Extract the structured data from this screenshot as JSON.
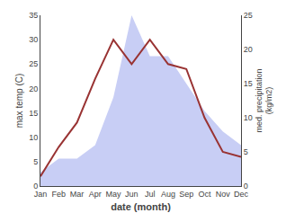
{
  "chart_data": {
    "type": "line",
    "categories": [
      "Jan",
      "Feb",
      "Mar",
      "Apr",
      "May",
      "Jun",
      "Jul",
      "Aug",
      "Sep",
      "Oct",
      "Nov",
      "Dec"
    ],
    "series": [
      {
        "type": "area",
        "axis": "y2",
        "color": "#c8cef5",
        "values": [
          2,
          4,
          4,
          6,
          13,
          25,
          19,
          19,
          15,
          11,
          8,
          6
        ]
      },
      {
        "type": "line",
        "color": "#993333",
        "values": [
          2,
          8,
          13,
          22,
          30,
          25,
          30,
          25,
          24,
          14,
          7,
          6
        ]
      }
    ],
    "xlabel": "date (month)",
    "ylabel": "max temp (C)",
    "y2label": "med. precipitation\n(kg/m2)",
    "ylim": [
      0,
      35
    ],
    "yticks": [
      0,
      5,
      10,
      15,
      20,
      25,
      30,
      35
    ],
    "y2lim": [
      0,
      25
    ],
    "y2ticks": [
      0,
      5,
      10,
      15,
      20,
      25
    ],
    "grid": false
  }
}
